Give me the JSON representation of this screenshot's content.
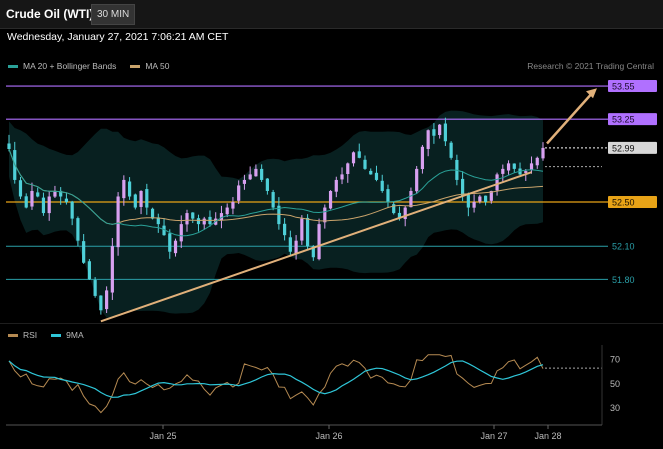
{
  "header": {
    "title": "Crude Oil (WTI)",
    "interval": "30 MIN"
  },
  "timestamp": "Wednesday, January 27, 2021 7:06:21 AM CET",
  "legend_main": [
    {
      "label": "MA 20 + Bollinger Bands",
      "color": "#2aa198"
    },
    {
      "label": "MA 50",
      "color": "#c9a36b"
    }
  ],
  "legend_rsi": [
    {
      "label": "RSI",
      "color": "#b58a52"
    },
    {
      "label": "9MA",
      "color": "#2fc6d8"
    }
  ],
  "credit": "Research © 2021 Trading Central",
  "colors": {
    "resistance": "#b070ff",
    "pivot": "#e8a317",
    "support": "#2a9fa8",
    "trend": "#e0b07a",
    "up": "#d8a0f0",
    "down": "#4fd0d8"
  },
  "chart_data": {
    "type": "candlestick",
    "x_ticks": [
      "Jan 25",
      "Jan 26",
      "Jan 27",
      "Jan 28"
    ],
    "y_range": [
      51.45,
      53.65
    ],
    "levels": [
      {
        "label": "53.55",
        "value": 53.55,
        "style": "resistance"
      },
      {
        "label": "53.25",
        "value": 53.25,
        "style": "resistance"
      },
      {
        "label": "52.99",
        "value": 52.99,
        "style": "last"
      },
      {
        "label": "52.50",
        "value": 52.5,
        "style": "pivot"
      },
      {
        "label": "52.10",
        "value": 52.1,
        "style": "support"
      },
      {
        "label": "51.80",
        "value": 51.8,
        "style": "support"
      }
    ],
    "closes": [
      52.98,
      52.7,
      52.55,
      52.45,
      52.6,
      52.55,
      52.4,
      52.55,
      52.6,
      52.55,
      52.5,
      52.35,
      52.15,
      51.95,
      51.8,
      51.65,
      51.52,
      51.7,
      52.1,
      52.55,
      52.7,
      52.55,
      52.45,
      52.6,
      52.45,
      52.35,
      52.3,
      52.2,
      52.05,
      52.15,
      52.3,
      52.4,
      52.35,
      52.3,
      52.35,
      52.3,
      52.35,
      52.4,
      52.45,
      52.5,
      52.65,
      52.7,
      52.75,
      52.8,
      52.7,
      52.6,
      52.45,
      52.3,
      52.2,
      52.05,
      52.15,
      52.35,
      52.1,
      52.0,
      52.3,
      52.45,
      52.6,
      52.7,
      52.75,
      52.85,
      52.95,
      52.9,
      52.8,
      52.75,
      52.7,
      52.6,
      52.5,
      52.4,
      52.35,
      52.45,
      52.6,
      52.8,
      53.0,
      53.15,
      53.1,
      53.2,
      53.05,
      52.9,
      52.7,
      52.55,
      52.45,
      52.5,
      52.55,
      52.5,
      52.6,
      52.75,
      52.8,
      52.85,
      52.8,
      52.75,
      52.78,
      52.85,
      52.9,
      52.99
    ],
    "rsi": {
      "y_ticks": [
        70,
        50,
        30
      ],
      "range": [
        20,
        78
      ]
    }
  }
}
